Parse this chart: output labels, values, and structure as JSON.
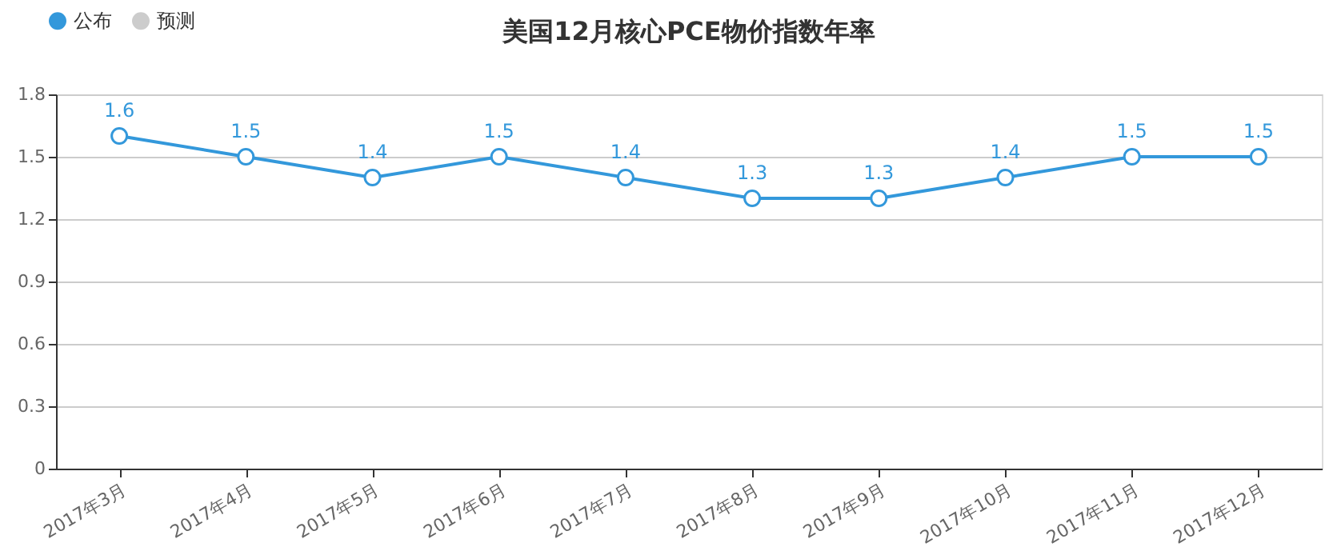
{
  "chart_data": {
    "type": "line",
    "title": "美国12月核心PCE物价指数年率",
    "categories": [
      "2017年3月",
      "2017年4月",
      "2017年5月",
      "2017年6月",
      "2017年7月",
      "2017年8月",
      "2017年9月",
      "2017年10月",
      "2017年11月",
      "2017年12月"
    ],
    "series": [
      {
        "name": "公布",
        "color": "#3398db",
        "values": [
          1.6,
          1.5,
          1.4,
          1.5,
          1.4,
          1.3,
          1.3,
          1.4,
          1.5,
          1.5
        ]
      },
      {
        "name": "预测",
        "color": "#cccccc",
        "values": [
          null,
          null,
          null,
          null,
          null,
          null,
          null,
          null,
          null,
          null
        ]
      }
    ],
    "ylim": [
      0,
      1.8
    ],
    "yticks": [
      0,
      0.3,
      0.6,
      0.9,
      1.2,
      1.5,
      1.8
    ],
    "grid": "y",
    "legend": "top left",
    "marker": "circle",
    "line_style": "solid",
    "data_labels": true
  }
}
